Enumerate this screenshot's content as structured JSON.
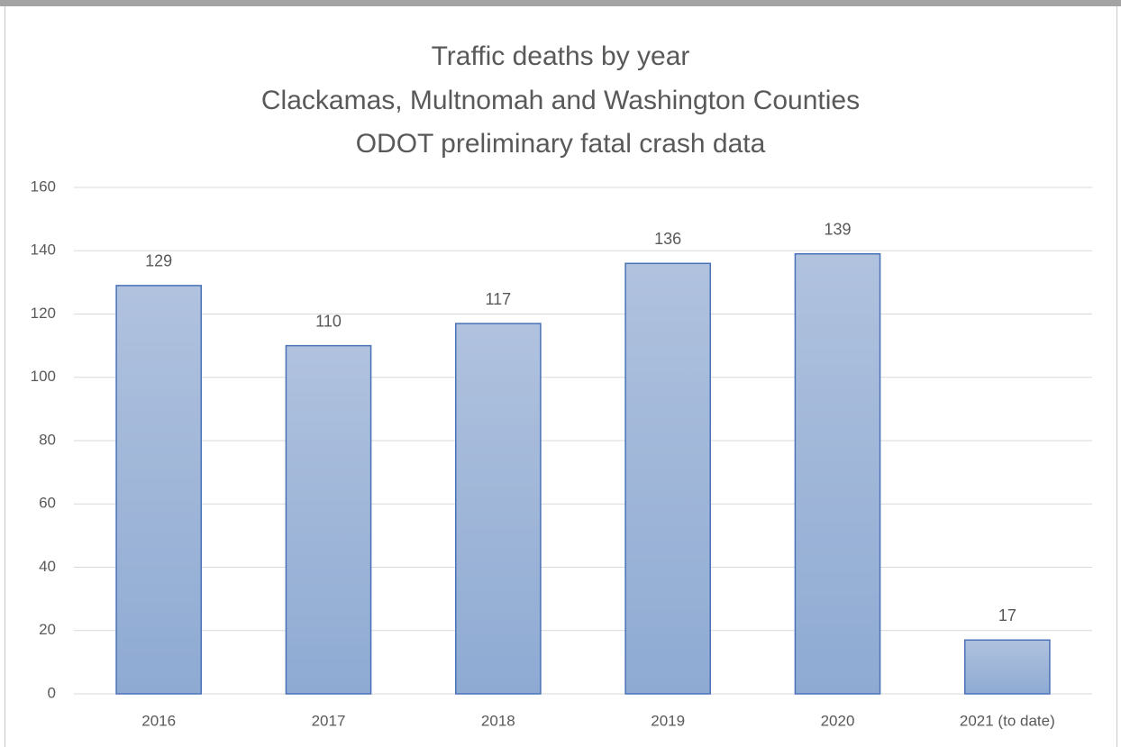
{
  "chart_data": {
    "type": "bar",
    "title": "Traffic deaths by year",
    "subtitle": [
      "Clackamas, Multnomah and Washington Counties",
      "ODOT preliminary fatal crash data"
    ],
    "categories": [
      "2016",
      "2017",
      "2018",
      "2019",
      "2020",
      "2021 (to date)"
    ],
    "values": [
      129,
      110,
      117,
      136,
      139,
      17
    ],
    "color": "#4a72b8",
    "ylim": [
      0,
      160
    ],
    "yticks": [
      0,
      20,
      40,
      60,
      80,
      100,
      120,
      140,
      160
    ],
    "grid": true
  }
}
